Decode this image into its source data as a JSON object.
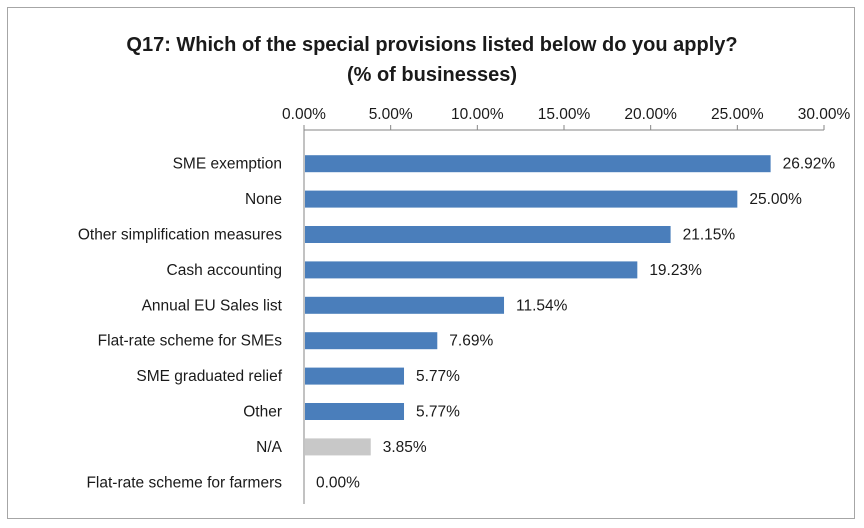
{
  "chart_data": {
    "type": "bar",
    "orientation": "horizontal",
    "title": "Q17: Which of the special provisions listed below do you apply?",
    "subtitle": "(% of businesses)",
    "categories": [
      "SME exemption",
      "None",
      "Other simplification measures",
      "Cash accounting",
      "Annual EU Sales list",
      "Flat-rate scheme for SMEs",
      "SME graduated relief",
      "Other",
      "N/A",
      "Flat-rate scheme for farmers"
    ],
    "values": [
      26.92,
      25.0,
      21.15,
      19.23,
      11.54,
      7.69,
      5.77,
      5.77,
      3.85,
      0.0
    ],
    "value_labels": [
      "26.92%",
      "25.00%",
      "21.15%",
      "19.23%",
      "11.54%",
      "7.69%",
      "5.77%",
      "5.77%",
      "3.85%",
      "0.00%"
    ],
    "bar_colors": [
      "#4a7ebb",
      "#4a7ebb",
      "#4a7ebb",
      "#4a7ebb",
      "#4a7ebb",
      "#4a7ebb",
      "#4a7ebb",
      "#4a7ebb",
      "#c8c8c8",
      "#4a7ebb"
    ],
    "xticks": [
      0,
      5,
      10,
      15,
      20,
      25,
      30
    ],
    "xtick_labels": [
      "0.00%",
      "5.00%",
      "10.00%",
      "15.00%",
      "20.00%",
      "25.00%",
      "30.00%"
    ],
    "xlim": [
      0,
      30
    ],
    "axis_position": "top",
    "grid": false,
    "legend": "none"
  }
}
